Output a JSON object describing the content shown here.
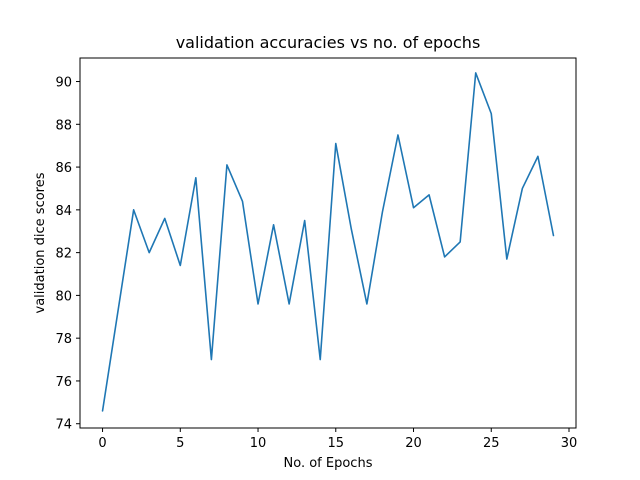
{
  "chart_data": {
    "type": "line",
    "title": "validation accuracies vs no. of epochs",
    "xlabel": "No. of Epochs",
    "ylabel": "validation dice scores",
    "xlim": [
      -1.45,
      30.45
    ],
    "ylim": [
      73.8,
      91.1
    ],
    "xticks": [
      0,
      5,
      10,
      15,
      20,
      25,
      30
    ],
    "yticks": [
      74,
      76,
      78,
      80,
      82,
      84,
      86,
      88,
      90
    ],
    "grid": false,
    "legend": "none",
    "series": [
      {
        "color": "#1f77b4",
        "x": [
          0,
          1,
          2,
          3,
          4,
          5,
          6,
          7,
          8,
          9,
          10,
          11,
          12,
          13,
          14,
          15,
          16,
          17,
          18,
          19,
          20,
          21,
          22,
          23,
          24,
          25,
          26,
          27,
          28,
          29
        ],
        "y": [
          74.6,
          79.3,
          84.0,
          82.0,
          83.6,
          81.4,
          85.5,
          77.0,
          86.1,
          84.4,
          79.6,
          83.3,
          79.6,
          83.5,
          77.0,
          87.1,
          83.1,
          79.6,
          83.9,
          87.5,
          84.1,
          84.7,
          81.8,
          82.5,
          90.4,
          88.5,
          81.7,
          85.0,
          86.5,
          82.8
        ]
      }
    ]
  }
}
